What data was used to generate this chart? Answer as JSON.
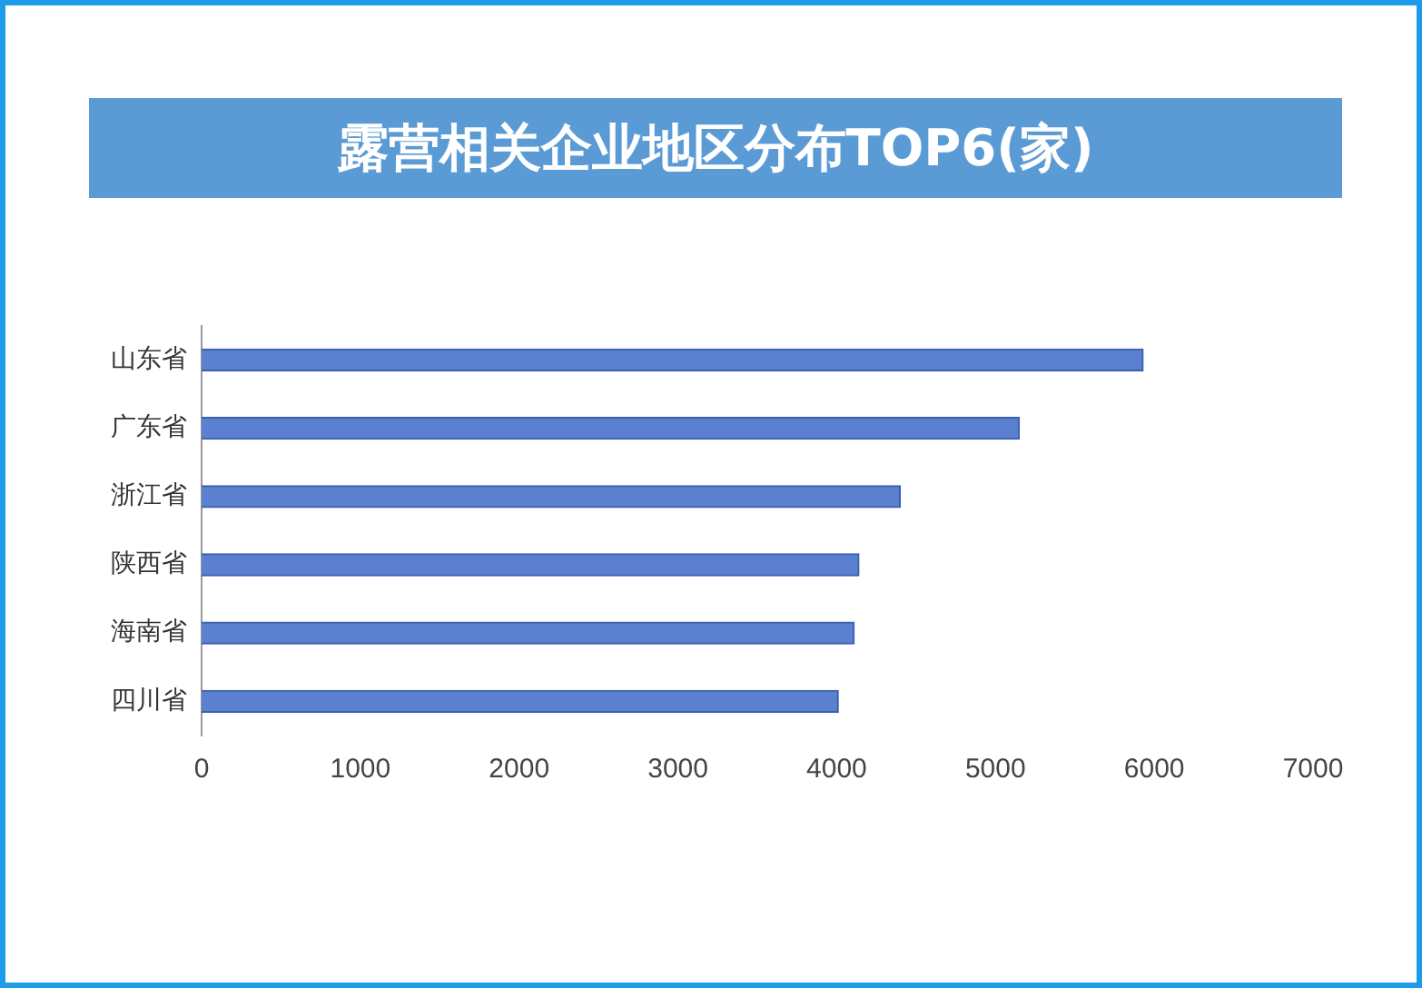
{
  "chart_data": {
    "type": "bar",
    "orientation": "horizontal",
    "title": "露营相关企业地区分布TOP6(家)",
    "categories": [
      "山东省",
      "广东省",
      "浙江省",
      "陕西省",
      "海南省",
      "四川省"
    ],
    "values": [
      5930,
      5150,
      4400,
      4140,
      4110,
      4010
    ],
    "color": "#5b80d0",
    "xlim": [
      0,
      7000
    ],
    "xticks": [
      0,
      1000,
      2000,
      3000,
      4000,
      5000,
      6000,
      7000
    ],
    "grid": false,
    "legend": false
  }
}
